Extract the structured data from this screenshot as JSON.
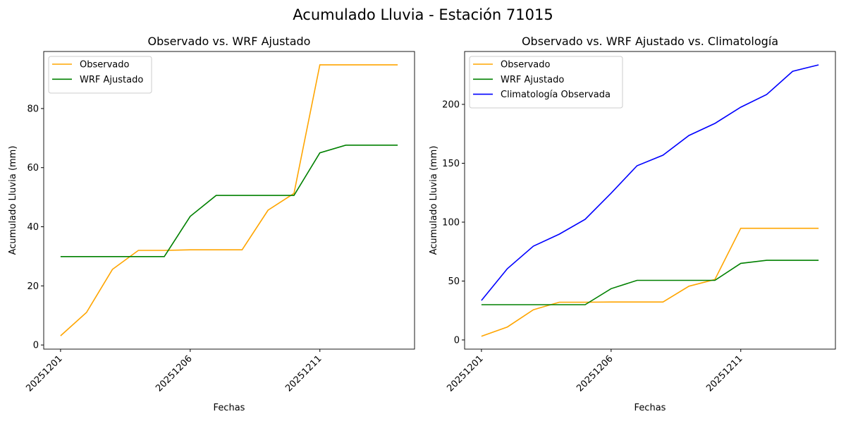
{
  "suptitle": "Acumulado Lluvia - Estación 71015",
  "colors": {
    "observado": "#FFA500",
    "wrf": "#008000",
    "clima": "#0000FF"
  },
  "chart_data": [
    {
      "type": "line",
      "title": "Observado vs. WRF Ajustado",
      "xlabel": "Fechas",
      "ylabel": "Acumulado Lluvia (mm)",
      "x": [
        "20251201",
        "20251202",
        "20251203",
        "20251204",
        "20251205",
        "20251206",
        "20251207",
        "20251208",
        "20251209",
        "20251210",
        "20251211",
        "20251212",
        "20251213",
        "20251214"
      ],
      "xticks": [
        "20251201",
        "20251206",
        "20251211"
      ],
      "yticks": [
        0,
        20,
        40,
        60,
        80
      ],
      "ylim": [
        -1.4,
        99.3
      ],
      "legend": "top-left",
      "series": [
        {
          "name": "Observado",
          "color": "#FFA500",
          "values": [
            3.1,
            11,
            25.6,
            32,
            32,
            32.2,
            32.2,
            32.2,
            45.6,
            51.3,
            94.8,
            94.8,
            94.8,
            94.8
          ]
        },
        {
          "name": "WRF Ajustado",
          "color": "#008000",
          "values": [
            29.9,
            29.9,
            29.9,
            29.9,
            29.9,
            43.5,
            50.6,
            50.6,
            50.6,
            50.6,
            65,
            67.6,
            67.6,
            67.6
          ]
        }
      ]
    },
    {
      "type": "line",
      "title": "Observado vs. WRF Ajustado vs. Climatología",
      "xlabel": "Fechas",
      "ylabel": "Acumulado Lluvia (mm)",
      "x": [
        "20251201",
        "20251202",
        "20251203",
        "20251204",
        "20251205",
        "20251206",
        "20251207",
        "20251208",
        "20251209",
        "20251210",
        "20251211",
        "20251212",
        "20251213",
        "20251214"
      ],
      "xticks": [
        "20251201",
        "20251206",
        "20251211"
      ],
      "yticks": [
        0,
        50,
        100,
        150,
        200
      ],
      "ylim": [
        -7.8,
        244.9
      ],
      "legend": "top-left",
      "series": [
        {
          "name": "Observado",
          "color": "#FFA500",
          "values": [
            3.1,
            11,
            25.6,
            32,
            32,
            32.2,
            32.2,
            32.2,
            45.6,
            51.3,
            94.8,
            94.8,
            94.8,
            94.8
          ]
        },
        {
          "name": "WRF Ajustado",
          "color": "#008000",
          "values": [
            29.9,
            29.9,
            29.9,
            29.9,
            29.9,
            43.5,
            50.6,
            50.6,
            50.6,
            50.6,
            65,
            67.6,
            67.6,
            67.6
          ]
        },
        {
          "name": "Climatología Observada",
          "color": "#0000FF",
          "values": [
            33.5,
            60.5,
            79.6,
            89.8,
            102.4,
            124.6,
            147.9,
            156.9,
            173.6,
            183.8,
            197.6,
            208.4,
            228.1,
            233.5
          ]
        }
      ]
    }
  ]
}
